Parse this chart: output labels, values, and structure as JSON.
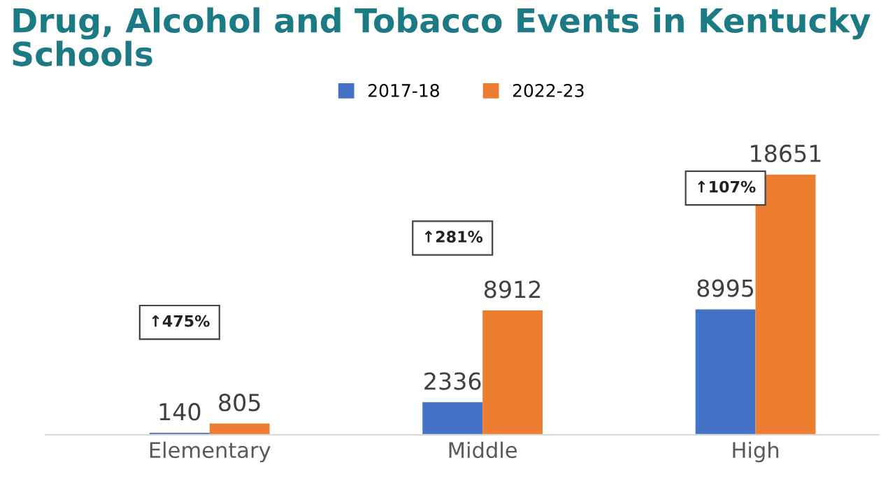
{
  "chart_data": {
    "type": "bar",
    "title": "Drug, Alcohol and Tobacco Events in Kentucky\nSchools",
    "categories": [
      "Elementary",
      "Middle",
      "High"
    ],
    "series": [
      {
        "name": "2017-18",
        "color": "#4472c4",
        "values": [
          140,
          2336,
          8995
        ]
      },
      {
        "name": "2022-23",
        "color": "#ed7d31",
        "values": [
          805,
          8912,
          18651
        ]
      }
    ],
    "data_labels": true,
    "legend": "top",
    "grid": false,
    "annotations": [
      "↑475%",
      "↑281%",
      "↑107%"
    ]
  }
}
